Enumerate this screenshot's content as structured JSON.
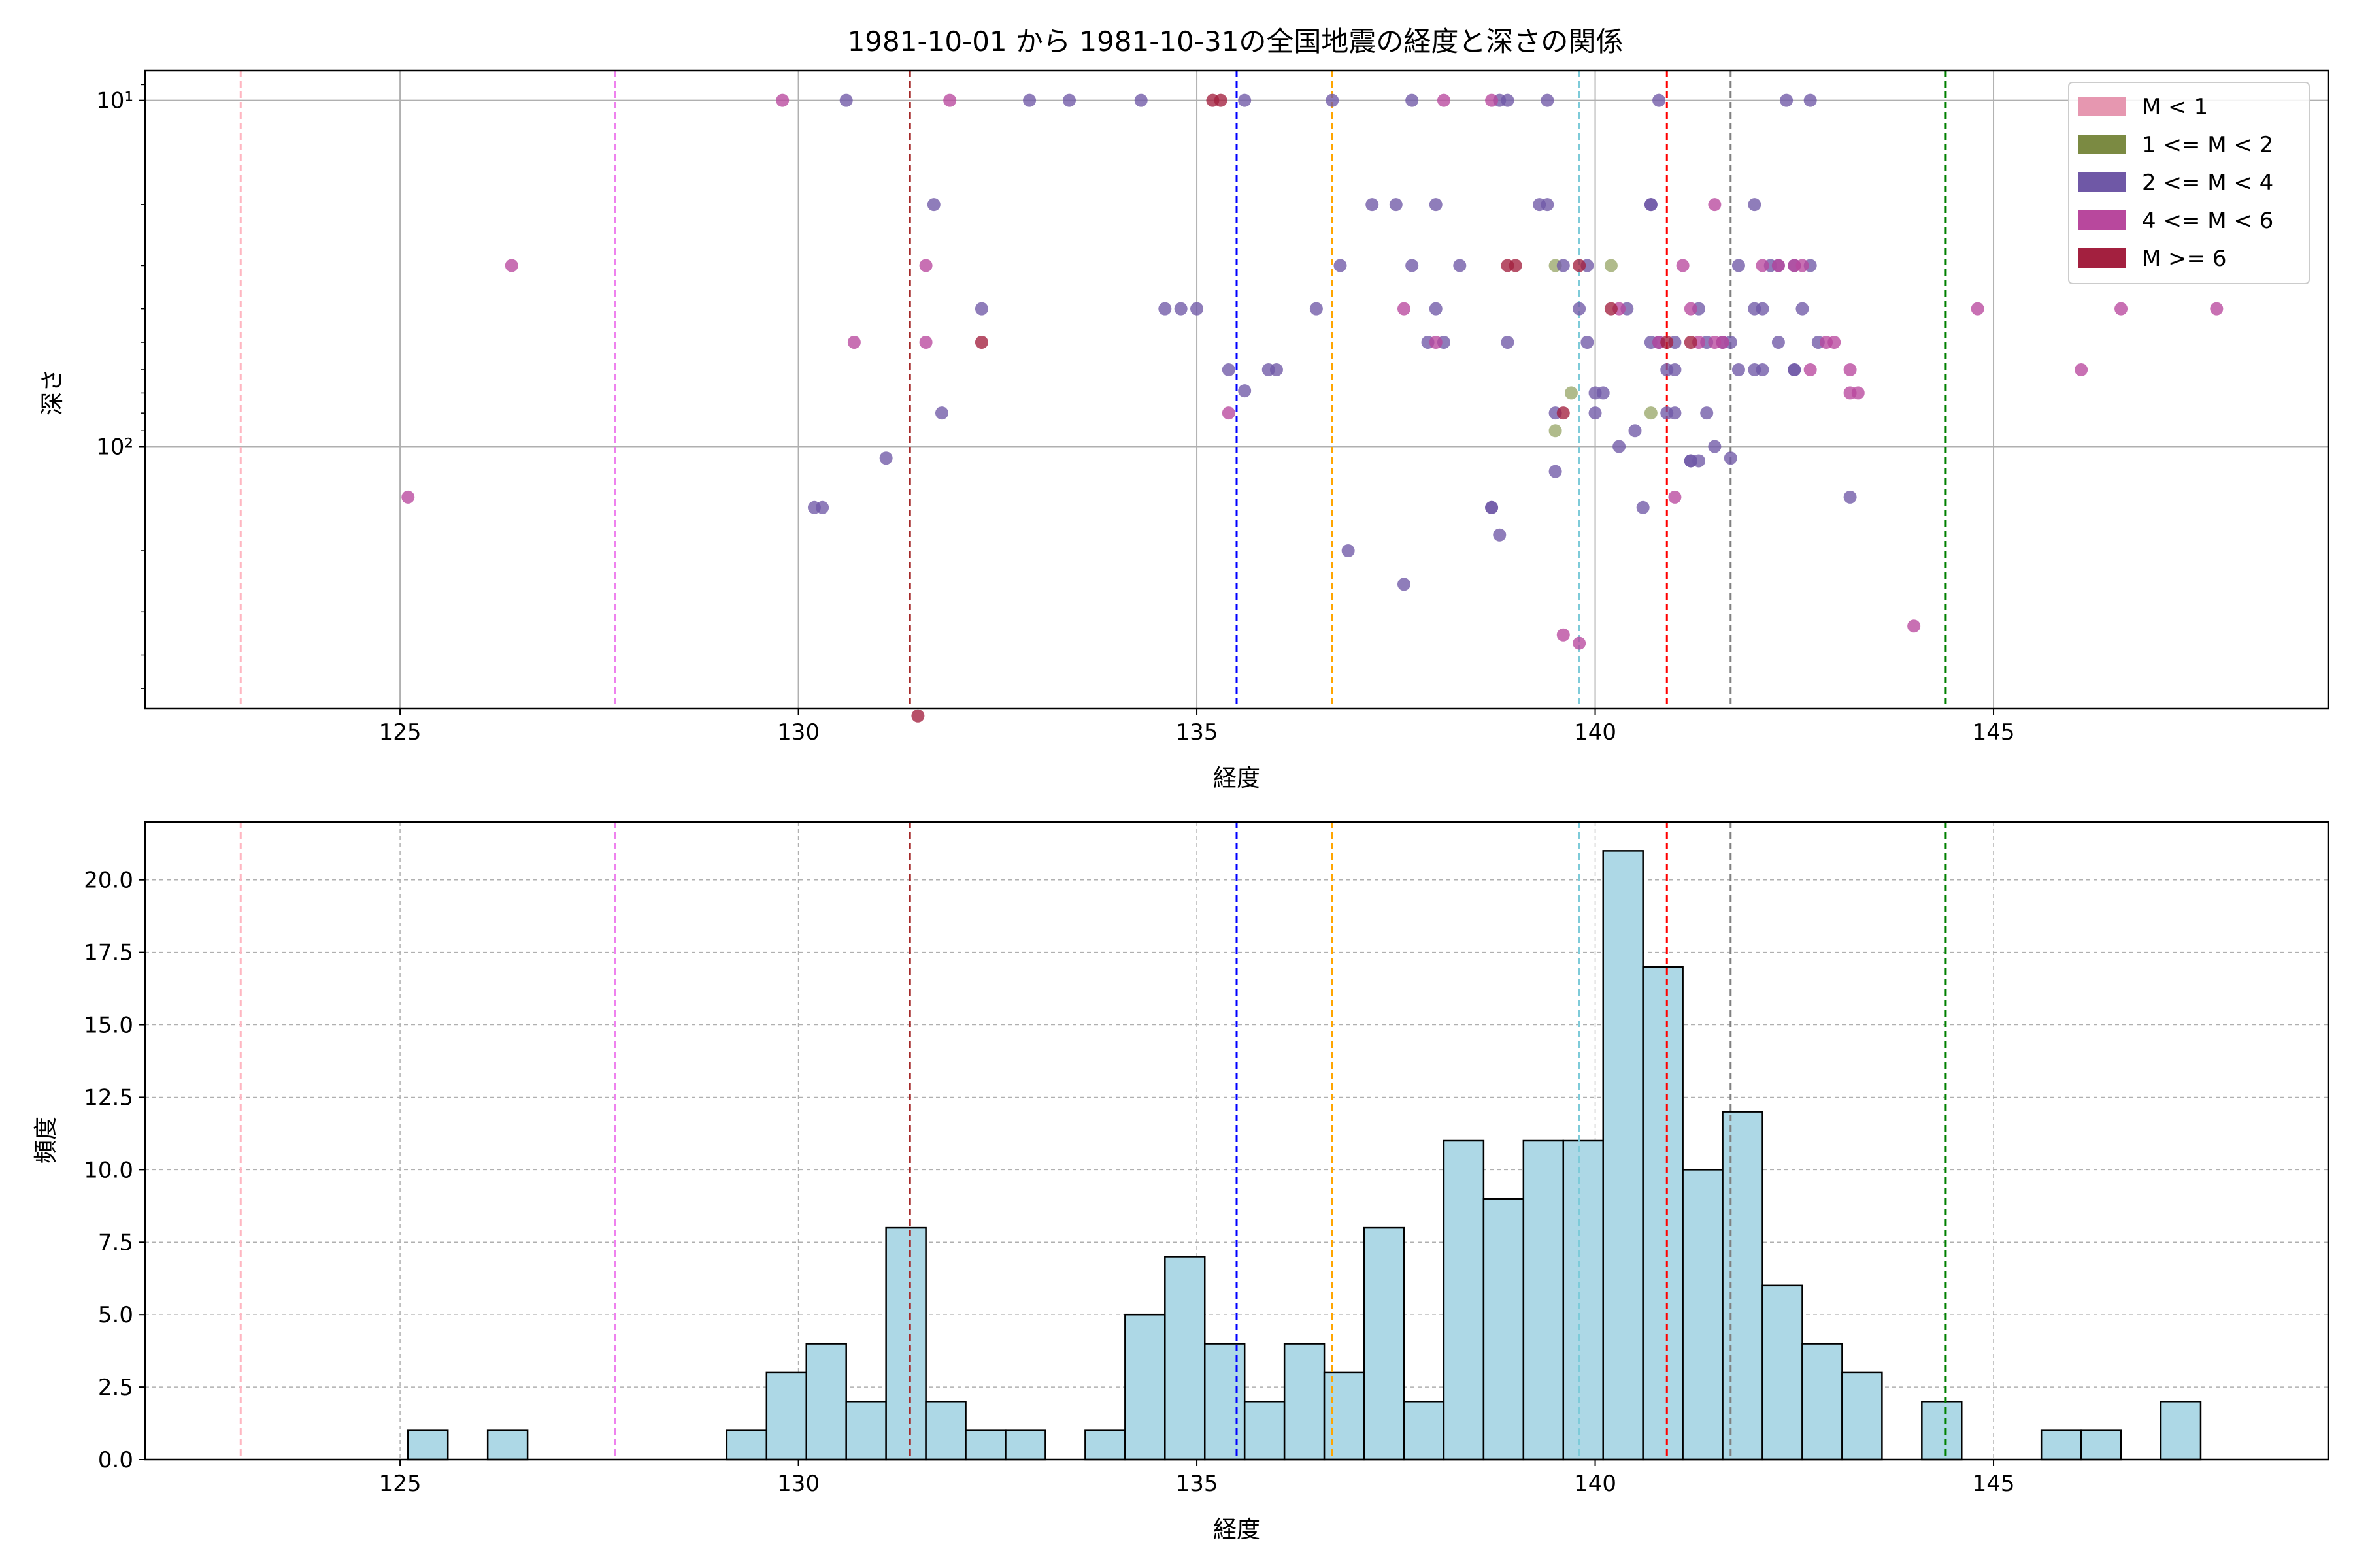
{
  "chart_data": [
    {
      "type": "scatter",
      "title": "1981-10-01 から 1981-10-31の全国地震の経度と深さの関係",
      "xlabel": "経度",
      "ylabel": "深さ",
      "xlim": [
        121.8,
        149.2
      ],
      "ylim": [
        570,
        8.2
      ],
      "yscale": "log-inverted",
      "xticks": [
        125,
        130,
        135,
        140,
        145
      ],
      "yticks": [
        {
          "value": 10,
          "label": "10¹"
        },
        {
          "value": 100,
          "label": "10²"
        }
      ],
      "grid": true,
      "legend_position": "top-right",
      "legend": [
        {
          "label": "M < 1",
          "color": "#e697b0"
        },
        {
          "label": "1 <= M < 2",
          "color": "#7b8a42"
        },
        {
          "label": "2 <= M < 4",
          "color": "#6f58a6"
        },
        {
          "label": "4 <= M < 6",
          "color": "#b8489d"
        },
        {
          "label": "M >= 6",
          "color": "#a3203f"
        }
      ],
      "ref_lines": [
        {
          "x": 123.0,
          "color": "#ffb6c1"
        },
        {
          "x": 127.7,
          "color": "#ee82ee"
        },
        {
          "x": 131.4,
          "color": "#a52a2a"
        },
        {
          "x": 135.5,
          "color": "#0000ff"
        },
        {
          "x": 136.7,
          "color": "#ffa500"
        },
        {
          "x": 139.8,
          "color": "#7ecbd9"
        },
        {
          "x": 140.9,
          "color": "#ff0000"
        },
        {
          "x": 141.7,
          "color": "#808080"
        },
        {
          "x": 144.4,
          "color": "#008000"
        }
      ],
      "series": [
        {
          "name": "1 <= M < 2",
          "color": "#9aa86a",
          "points": [
            [
              139.5,
              30
            ],
            [
              139.7,
              70
            ],
            [
              140.2,
              30
            ],
            [
              140.7,
              80
            ],
            [
              139.5,
              90
            ]
          ]
        },
        {
          "name": "2 <= M < 4",
          "color": "#6f58a6",
          "points": [
            [
              130.6,
              10
            ],
            [
              131.1,
              108
            ],
            [
              130.2,
              150
            ],
            [
              130.3,
              150
            ],
            [
              131.7,
              20
            ],
            [
              131.8,
              80
            ],
            [
              132.3,
              40
            ],
            [
              132.9,
              10
            ],
            [
              133.4,
              10
            ],
            [
              134.3,
              10
            ],
            [
              134.6,
              40
            ],
            [
              134.8,
              40
            ],
            [
              135.0,
              40
            ],
            [
              135.4,
              60
            ],
            [
              135.6,
              10
            ],
            [
              135.6,
              69
            ],
            [
              135.9,
              60
            ],
            [
              136.0,
              60
            ],
            [
              136.5,
              40
            ],
            [
              136.7,
              10
            ],
            [
              136.8,
              30
            ],
            [
              136.9,
              200
            ],
            [
              137.2,
              20
            ],
            [
              137.5,
              20
            ],
            [
              137.6,
              250
            ],
            [
              137.7,
              10
            ],
            [
              137.7,
              30
            ],
            [
              138.0,
              20
            ],
            [
              137.9,
              50
            ],
            [
              138.0,
              40
            ],
            [
              138.1,
              50
            ],
            [
              138.3,
              30
            ],
            [
              138.7,
              150
            ],
            [
              138.7,
              150
            ],
            [
              138.8,
              180
            ],
            [
              138.8,
              10
            ],
            [
              138.9,
              10
            ],
            [
              138.9,
              50
            ],
            [
              139.3,
              20
            ],
            [
              139.4,
              20
            ],
            [
              139.4,
              10
            ],
            [
              139.5,
              118
            ],
            [
              139.5,
              80
            ],
            [
              139.6,
              30
            ],
            [
              139.8,
              40
            ],
            [
              139.9,
              30
            ],
            [
              139.9,
              50
            ],
            [
              140.0,
              70
            ],
            [
              140.0,
              80
            ],
            [
              140.1,
              70
            ],
            [
              140.3,
              100
            ],
            [
              140.4,
              40
            ],
            [
              140.5,
              90
            ],
            [
              140.6,
              150
            ],
            [
              140.7,
              50
            ],
            [
              140.7,
              20
            ],
            [
              140.7,
              20
            ],
            [
              140.8,
              10
            ],
            [
              140.8,
              50
            ],
            [
              140.9,
              60
            ],
            [
              140.9,
              80
            ],
            [
              141.0,
              50
            ],
            [
              141.0,
              80
            ],
            [
              141.0,
              60
            ],
            [
              141.2,
              110
            ],
            [
              141.2,
              110
            ],
            [
              141.3,
              40
            ],
            [
              141.3,
              110
            ],
            [
              141.4,
              80
            ],
            [
              141.4,
              50
            ],
            [
              141.5,
              100
            ],
            [
              141.6,
              50
            ],
            [
              141.7,
              108
            ],
            [
              141.7,
              50
            ],
            [
              141.8,
              30
            ],
            [
              141.8,
              60
            ],
            [
              142.0,
              20
            ],
            [
              142.0,
              40
            ],
            [
              142.0,
              60
            ],
            [
              142.1,
              40
            ],
            [
              142.1,
              60
            ],
            [
              142.2,
              30
            ],
            [
              142.3,
              30
            ],
            [
              142.4,
              10
            ],
            [
              142.5,
              30
            ],
            [
              142.5,
              60
            ],
            [
              142.6,
              40
            ],
            [
              142.7,
              10
            ],
            [
              142.7,
              30
            ],
            [
              142.8,
              50
            ],
            [
              143.2,
              140
            ],
            [
              142.3,
              50
            ],
            [
              142.5,
              60
            ]
          ]
        },
        {
          "name": "4 <= M < 6",
          "color": "#b8489d",
          "points": [
            [
              125.1,
              140
            ],
            [
              126.4,
              30
            ],
            [
              129.8,
              10
            ],
            [
              130.7,
              50
            ],
            [
              131.6,
              30
            ],
            [
              131.6,
              50
            ],
            [
              131.9,
              10
            ],
            [
              135.4,
              80
            ],
            [
              137.6,
              40
            ],
            [
              138.0,
              50
            ],
            [
              138.1,
              10
            ],
            [
              138.7,
              10
            ],
            [
              139.6,
              350
            ],
            [
              139.8,
              370
            ],
            [
              140.3,
              40
            ],
            [
              140.8,
              50
            ],
            [
              141.0,
              140
            ],
            [
              141.1,
              30
            ],
            [
              141.2,
              40
            ],
            [
              141.3,
              50
            ],
            [
              141.5,
              20
            ],
            [
              141.5,
              50
            ],
            [
              141.6,
              50
            ],
            [
              142.1,
              30
            ],
            [
              142.3,
              30
            ],
            [
              142.5,
              30
            ],
            [
              142.6,
              30
            ],
            [
              142.7,
              60
            ],
            [
              142.9,
              50
            ],
            [
              143.0,
              50
            ],
            [
              143.2,
              60
            ],
            [
              143.3,
              70
            ],
            [
              143.2,
              70
            ],
            [
              144.0,
              330
            ],
            [
              144.8,
              40
            ],
            [
              146.1,
              60
            ],
            [
              146.6,
              40
            ],
            [
              147.8,
              40
            ]
          ]
        },
        {
          "name": "M >= 6",
          "color": "#a3203f",
          "points": [
            [
              135.2,
              10
            ],
            [
              135.3,
              10
            ],
            [
              131.5,
              600
            ],
            [
              132.3,
              50
            ],
            [
              138.9,
              30
            ],
            [
              139.0,
              30
            ],
            [
              139.8,
              30
            ],
            [
              139.6,
              80
            ],
            [
              140.2,
              40
            ],
            [
              140.9,
              50
            ],
            [
              141.2,
              50
            ]
          ]
        }
      ]
    },
    {
      "type": "bar",
      "xlabel": "経度",
      "ylabel": "頻度",
      "xlim": [
        121.8,
        149.2
      ],
      "ylim": [
        0,
        22
      ],
      "xticks": [
        125,
        130,
        135,
        140,
        145
      ],
      "yticks": [
        "0.0",
        "2.5",
        "5.0",
        "7.5",
        "10.0",
        "12.5",
        "15.0",
        "17.5",
        "20.0"
      ],
      "grid": true,
      "bin_start": 125.1,
      "bin_width": 0.5,
      "counts": [
        1,
        0,
        1,
        0,
        0,
        0,
        0,
        0,
        1,
        3,
        4,
        2,
        8,
        2,
        1,
        1,
        0,
        1,
        5,
        7,
        4,
        2,
        4,
        3,
        8,
        2,
        11,
        9,
        11,
        11,
        21,
        17,
        10,
        12,
        6,
        4,
        3,
        0,
        2,
        0,
        0,
        1,
        1,
        0,
        2
      ],
      "ref_lines": [
        {
          "x": 123.0,
          "color": "#ffb6c1"
        },
        {
          "x": 127.7,
          "color": "#ee82ee"
        },
        {
          "x": 131.4,
          "color": "#a52a2a"
        },
        {
          "x": 135.5,
          "color": "#0000ff"
        },
        {
          "x": 136.7,
          "color": "#ffa500"
        },
        {
          "x": 139.8,
          "color": "#7ecbd9"
        },
        {
          "x": 140.9,
          "color": "#ff0000"
        },
        {
          "x": 141.7,
          "color": "#808080"
        },
        {
          "x": 144.4,
          "color": "#008000"
        }
      ]
    }
  ]
}
